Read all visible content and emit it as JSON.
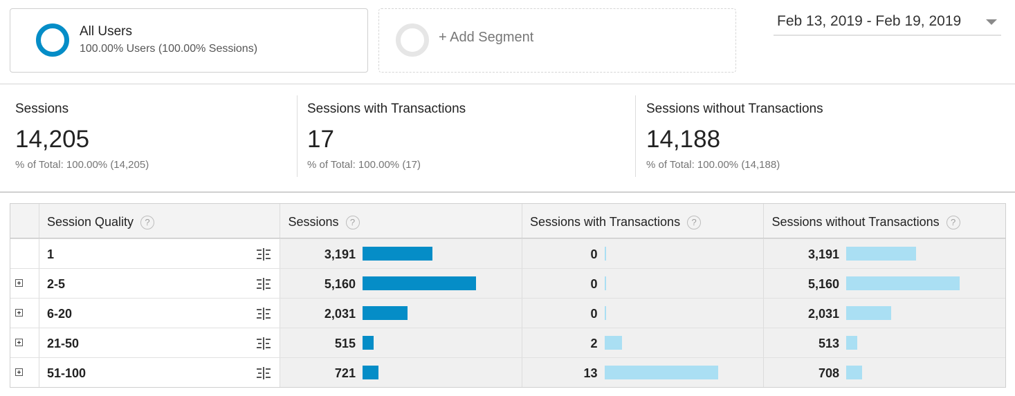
{
  "segments": {
    "active": {
      "name": "All Users",
      "subtitle": "100.00% Users (100.00% Sessions)"
    },
    "add_label": "+ Add Segment"
  },
  "date_range": "Feb 13, 2019 - Feb 19, 2019",
  "scorecards": [
    {
      "label": "Sessions",
      "value": "14,205",
      "sub": "% of Total: 100.00% (14,205)"
    },
    {
      "label": "Sessions with Transactions",
      "value": "17",
      "sub": "% of Total: 100.00% (17)"
    },
    {
      "label": "Sessions without Transactions",
      "value": "14,188",
      "sub": "% of Total: 100.00% (14,188)"
    }
  ],
  "table": {
    "headers": {
      "dimension": "Session Quality",
      "m1": "Sessions",
      "m2": "Sessions with Transactions",
      "m3": "Sessions without Transactions",
      "help": "?"
    },
    "max": {
      "m1": 5160,
      "m2": 13,
      "m3": 5160
    },
    "rows": [
      {
        "dimension": "1",
        "expandable": false,
        "m1": "3,191",
        "m1v": 3191,
        "m2": "0",
        "m2v": 0,
        "m3": "3,191",
        "m3v": 3191
      },
      {
        "dimension": "2-5",
        "expandable": true,
        "m1": "5,160",
        "m1v": 5160,
        "m2": "0",
        "m2v": 0,
        "m3": "5,160",
        "m3v": 5160
      },
      {
        "dimension": "6-20",
        "expandable": true,
        "m1": "2,031",
        "m1v": 2031,
        "m2": "0",
        "m2v": 0,
        "m3": "2,031",
        "m3v": 2031
      },
      {
        "dimension": "21-50",
        "expandable": true,
        "m1": "515",
        "m1v": 515,
        "m2": "2",
        "m2v": 2,
        "m3": "513",
        "m3v": 513
      },
      {
        "dimension": "51-100",
        "expandable": true,
        "m1": "721",
        "m1v": 721,
        "m2": "13",
        "m2v": 13,
        "m3": "708",
        "m3v": 708
      }
    ]
  },
  "colors": {
    "primary_bar": "#058dc7",
    "secondary_bar": "#aadff3",
    "donut_active": "#058dc7",
    "donut_empty": "#e6e6e6"
  }
}
